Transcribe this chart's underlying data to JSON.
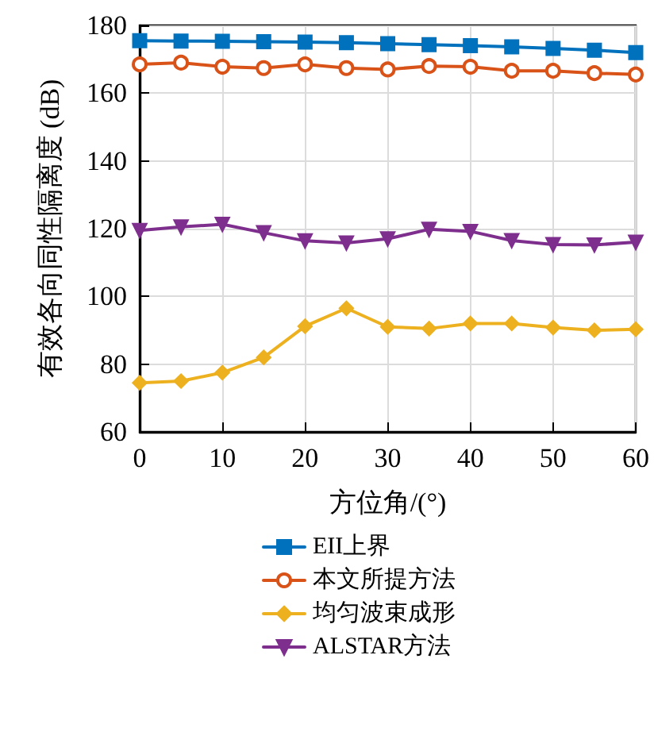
{
  "chart_data": {
    "type": "line",
    "xlabel": "方位角/(°)",
    "ylabel": "有效各向同性隔离度 (dB)",
    "x": [
      0,
      5,
      10,
      15,
      20,
      25,
      30,
      35,
      40,
      45,
      50,
      55,
      60
    ],
    "xlim": [
      0,
      60
    ],
    "xticks": [
      0,
      10,
      20,
      30,
      40,
      50,
      60
    ],
    "ylim": [
      60,
      180
    ],
    "yticks": [
      60,
      80,
      100,
      120,
      140,
      160,
      180
    ],
    "grid": true,
    "legend": "bottom",
    "line_style": "solid",
    "series": [
      {
        "name": "EII上界",
        "color": "#0072bd",
        "marker": "square",
        "values": [
          175.5,
          175.4,
          175.3,
          175.2,
          175.1,
          174.9,
          174.6,
          174.3,
          174.0,
          173.7,
          173.2,
          172.7,
          172.0
        ]
      },
      {
        "name": "本文所提方法",
        "color": "#d95319",
        "marker": "circle",
        "values": [
          168.5,
          169.0,
          167.8,
          167.4,
          168.5,
          167.4,
          167.0,
          168.0,
          167.8,
          166.6,
          166.6,
          165.9,
          165.5
        ]
      },
      {
        "name": "均匀波束成形",
        "color": "#edb120",
        "marker": "diamond",
        "values": [
          74.5,
          75.0,
          77.5,
          82.0,
          91.2,
          96.5,
          91.0,
          90.5,
          92.0,
          92.0,
          90.8,
          90.0,
          90.3
        ]
      },
      {
        "name": "ALSTAR方法",
        "color": "#7e2f8e",
        "marker": "triangle",
        "values": [
          119.5,
          120.5,
          121.3,
          118.8,
          116.4,
          115.8,
          117.0,
          119.8,
          119.2,
          116.5,
          115.3,
          115.2,
          116.0
        ]
      }
    ]
  }
}
